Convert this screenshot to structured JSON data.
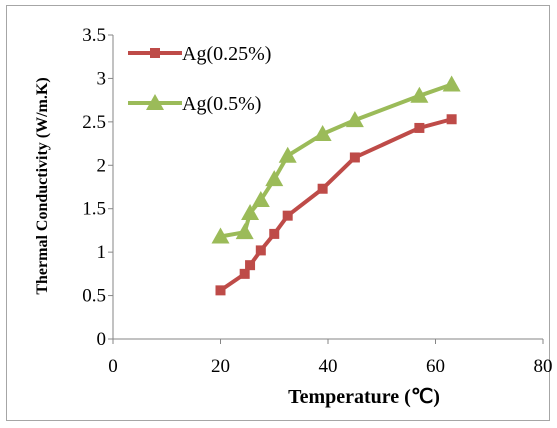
{
  "chart_data": {
    "type": "line",
    "xlabel": "Temperature (℃)",
    "ylabel": "Thermal Conductivity (W/m.K)",
    "xlim": [
      0,
      80
    ],
    "ylim": [
      0,
      3.5
    ],
    "xticks": [
      "0",
      "20",
      "40",
      "60",
      "80"
    ],
    "yticks": [
      "0",
      "0.5",
      "1",
      "1.5",
      "2",
      "2.5",
      "3",
      "3.5"
    ],
    "grid": false,
    "legend": "top-left",
    "series": [
      {
        "name": "Ag(0.25%)",
        "marker": "square",
        "color": "#be4b48",
        "x": [
          20,
          24.5,
          25.5,
          27.5,
          30,
          32.5,
          39,
          45,
          57,
          63
        ],
        "y": [
          0.56,
          0.75,
          0.85,
          1.02,
          1.21,
          1.42,
          1.73,
          2.09,
          2.43,
          2.53
        ]
      },
      {
        "name": "Ag(0.5%)",
        "marker": "triangle",
        "color": "#9bbb59",
        "x": [
          20,
          24.5,
          25.5,
          27.5,
          30,
          32.5,
          39,
          45,
          57,
          63
        ],
        "y": [
          1.18,
          1.23,
          1.45,
          1.6,
          1.84,
          2.11,
          2.36,
          2.52,
          2.8,
          2.93
        ]
      }
    ]
  }
}
